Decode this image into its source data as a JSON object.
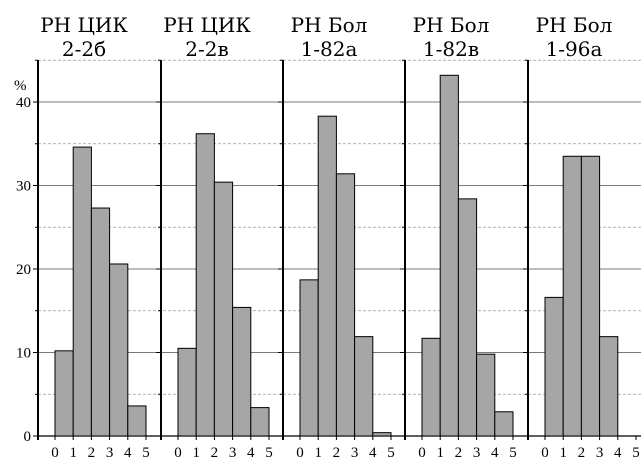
{
  "chart_data": {
    "type": "bar",
    "ylabel": "%",
    "ylim": [
      0,
      45
    ],
    "yticks": [
      0,
      10,
      20,
      30,
      40
    ],
    "xlim": [
      0,
      5
    ],
    "xticks": [
      "0",
      "1",
      "2",
      "3",
      "4",
      "5"
    ],
    "grid": "horizontal dashed, every 5 %",
    "panels": [
      {
        "title_line1": "РН ЦИК",
        "title_line2": "2-2б",
        "bins": [
          [
            0,
            1
          ],
          [
            1,
            2
          ],
          [
            2,
            3
          ],
          [
            3,
            4
          ],
          [
            4,
            5
          ]
        ],
        "values": [
          10.2,
          34.6,
          27.3,
          20.6,
          3.6
        ]
      },
      {
        "title_line1": "РН ЦИК",
        "title_line2": "2-2в",
        "bins": [
          [
            0,
            1
          ],
          [
            1,
            2
          ],
          [
            2,
            3
          ],
          [
            3,
            4
          ],
          [
            4,
            5
          ]
        ],
        "values": [
          10.5,
          36.2,
          30.4,
          15.4,
          3.4
        ]
      },
      {
        "title_line1": "РН Бол",
        "title_line2": "1-82а",
        "bins": [
          [
            0,
            1
          ],
          [
            1,
            2
          ],
          [
            2,
            3
          ],
          [
            3,
            4
          ],
          [
            4,
            5
          ]
        ],
        "values": [
          18.7,
          38.3,
          31.4,
          11.9,
          0.4
        ]
      },
      {
        "title_line1": "РН Бол",
        "title_line2": "1-82в",
        "bins": [
          [
            0,
            1
          ],
          [
            1,
            2
          ],
          [
            2,
            3
          ],
          [
            3,
            4
          ],
          [
            4,
            5
          ]
        ],
        "values": [
          11.7,
          43.2,
          28.4,
          9.8,
          2.9
        ]
      },
      {
        "title_line1": "РН Бол",
        "title_line2": "1-96а",
        "bins": [
          [
            0,
            1
          ],
          [
            1,
            2
          ],
          [
            2,
            3
          ],
          [
            3,
            4
          ]
        ],
        "values": [
          16.6,
          33.5,
          33.5,
          11.9
        ]
      }
    ]
  }
}
